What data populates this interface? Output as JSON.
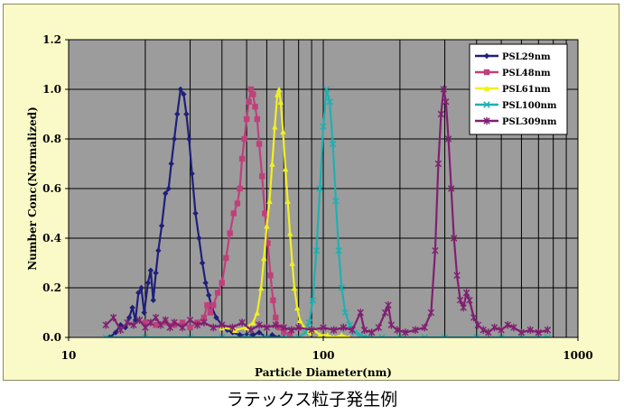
{
  "caption": "ラテックス粒子発生例",
  "chart_data": {
    "type": "line",
    "title": "",
    "xlabel": "Particle Diameter(nm)",
    "ylabel": "Number Conc(Normalized)",
    "xscale": "log",
    "xlim": [
      10,
      1000
    ],
    "ylim": [
      0,
      1.2
    ],
    "xticks": [
      {
        "value": 10,
        "label": "10"
      },
      {
        "value": 100,
        "label": "100"
      },
      {
        "value": 1000,
        "label": "1000"
      }
    ],
    "yticks": [
      {
        "value": 0,
        "label": "0.0"
      },
      {
        "value": 0.2,
        "label": "0.2"
      },
      {
        "value": 0.4,
        "label": "0.4"
      },
      {
        "value": 0.6,
        "label": "0.6"
      },
      {
        "value": 0.8,
        "label": "0.8"
      },
      {
        "value": 1.0,
        "label": "1.0"
      },
      {
        "value": 1.2,
        "label": "1.2"
      }
    ],
    "grid": true,
    "legend_position": "top-right",
    "plot_background": "#9c9c9c",
    "series": [
      {
        "name": "PSL29nm",
        "color": "#1f1f7a",
        "marker": "diamond",
        "points": [
          [
            14.5,
            0
          ],
          [
            15.3,
            0.02
          ],
          [
            16,
            0.05
          ],
          [
            16.7,
            0.04
          ],
          [
            17.3,
            0.08
          ],
          [
            17.8,
            0.12
          ],
          [
            18.3,
            0.07
          ],
          [
            18.8,
            0.18
          ],
          [
            19.3,
            0.2
          ],
          [
            19.8,
            0.1
          ],
          [
            20.5,
            0.22
          ],
          [
            21,
            0.27
          ],
          [
            21.5,
            0.15
          ],
          [
            22,
            0.26
          ],
          [
            22.5,
            0.35
          ],
          [
            23.2,
            0.45
          ],
          [
            24,
            0.58
          ],
          [
            24.7,
            0.6
          ],
          [
            25.3,
            0.7
          ],
          [
            26,
            0.8
          ],
          [
            26.7,
            0.9
          ],
          [
            27.5,
            1.0
          ],
          [
            28.3,
            0.98
          ],
          [
            29,
            0.9
          ],
          [
            29.7,
            0.8
          ],
          [
            30.5,
            0.66
          ],
          [
            31.5,
            0.5
          ],
          [
            32.5,
            0.4
          ],
          [
            33.5,
            0.3
          ],
          [
            34.5,
            0.22
          ],
          [
            35.5,
            0.17
          ],
          [
            36.5,
            0.12
          ],
          [
            38,
            0.08
          ],
          [
            40,
            0.05
          ],
          [
            42,
            0.03
          ],
          [
            44,
            0.02
          ],
          [
            47,
            0.01
          ],
          [
            50,
            0.01
          ],
          [
            53,
            0.01
          ],
          [
            56,
            0.02
          ],
          [
            60,
            0.0
          ],
          [
            63,
            0.01
          ],
          [
            67,
            0.0
          ]
        ]
      },
      {
        "name": "PSL48nm",
        "color": "#c0407a",
        "marker": "square",
        "points": [
          [
            20,
            0.06
          ],
          [
            22,
            0.05
          ],
          [
            24,
            0.06
          ],
          [
            26,
            0.05
          ],
          [
            28,
            0.06
          ],
          [
            30,
            0.04
          ],
          [
            32,
            0.06
          ],
          [
            34,
            0.08
          ],
          [
            35,
            0.13
          ],
          [
            36,
            0.1
          ],
          [
            37,
            0.13
          ],
          [
            38.5,
            0.18
          ],
          [
            40,
            0.22
          ],
          [
            41.5,
            0.32
          ],
          [
            43,
            0.42
          ],
          [
            44.5,
            0.5
          ],
          [
            46,
            0.54
          ],
          [
            47,
            0.6
          ],
          [
            48,
            0.72
          ],
          [
            49,
            0.8
          ],
          [
            50,
            0.88
          ],
          [
            51,
            0.95
          ],
          [
            52,
            1.0
          ],
          [
            53,
            0.98
          ],
          [
            54,
            0.93
          ],
          [
            55,
            0.88
          ],
          [
            56,
            0.78
          ],
          [
            57.5,
            0.65
          ],
          [
            59,
            0.5
          ],
          [
            60.5,
            0.38
          ],
          [
            62,
            0.25
          ],
          [
            63.5,
            0.15
          ],
          [
            65,
            0.08
          ],
          [
            67,
            0.04
          ],
          [
            70,
            0.02
          ],
          [
            74,
            0.01
          ]
        ]
      },
      {
        "name": "PSL61nm",
        "color": "#f0f020",
        "marker": "triangle",
        "points": [
          [
            40,
            0.04
          ],
          [
            45,
            0.03
          ],
          [
            50,
            0.04
          ],
          [
            53,
            0.06
          ],
          [
            55,
            0.1
          ],
          [
            57,
            0.2
          ],
          [
            58.5,
            0.32
          ],
          [
            60,
            0.45
          ],
          [
            61.5,
            0.55
          ],
          [
            63,
            0.7
          ],
          [
            64.5,
            0.85
          ],
          [
            66,
            0.98
          ],
          [
            67,
            1.0
          ],
          [
            68,
            0.95
          ],
          [
            69.5,
            0.83
          ],
          [
            71,
            0.68
          ],
          [
            72.5,
            0.55
          ],
          [
            74,
            0.42
          ],
          [
            75.5,
            0.3
          ],
          [
            77,
            0.2
          ],
          [
            79,
            0.12
          ],
          [
            81,
            0.07
          ],
          [
            84,
            0.04
          ],
          [
            88,
            0.02
          ],
          [
            92,
            0.03
          ],
          [
            97,
            0.01
          ],
          [
            104,
            0.01
          ],
          [
            110,
            0.0
          ],
          [
            118,
            0.01
          ],
          [
            126,
            0.0
          ]
        ]
      },
      {
        "name": "PSL100nm",
        "color": "#20b0b0",
        "marker": "cross",
        "points": [
          [
            14,
            0
          ],
          [
            20,
            0
          ],
          [
            30,
            0
          ],
          [
            40,
            0
          ],
          [
            50,
            0
          ],
          [
            60,
            0
          ],
          [
            70,
            0
          ],
          [
            80,
            0
          ],
          [
            85,
            0.02
          ],
          [
            88,
            0.06
          ],
          [
            91,
            0.15
          ],
          [
            94,
            0.35
          ],
          [
            97,
            0.6
          ],
          [
            100,
            0.85
          ],
          [
            103,
            1.0
          ],
          [
            106,
            0.95
          ],
          [
            109,
            0.78
          ],
          [
            112,
            0.55
          ],
          [
            115,
            0.35
          ],
          [
            118,
            0.2
          ],
          [
            122,
            0.1
          ],
          [
            127,
            0.05
          ],
          [
            133,
            0.02
          ],
          [
            140,
            0.01
          ],
          [
            150,
            0.0
          ],
          [
            170,
            0.0
          ],
          [
            200,
            0.0
          ],
          [
            250,
            0.0
          ],
          [
            300,
            0.0
          ],
          [
            400,
            0.0
          ],
          [
            500,
            0.0
          ],
          [
            600,
            0.0
          ],
          [
            700,
            0.0
          ],
          [
            760,
            0.0
          ]
        ]
      },
      {
        "name": "PSL309nm",
        "color": "#802070",
        "marker": "star",
        "points": [
          [
            14,
            0.05
          ],
          [
            15,
            0.08
          ],
          [
            16,
            0.03
          ],
          [
            17,
            0.06
          ],
          [
            18,
            0.05
          ],
          [
            19,
            0.07
          ],
          [
            20,
            0.04
          ],
          [
            21,
            0.06
          ],
          [
            22,
            0.08
          ],
          [
            23,
            0.05
          ],
          [
            24,
            0.07
          ],
          [
            25,
            0.04
          ],
          [
            26,
            0.06
          ],
          [
            28,
            0.04
          ],
          [
            30,
            0.07
          ],
          [
            32,
            0.05
          ],
          [
            34,
            0.06
          ],
          [
            37,
            0.04
          ],
          [
            40,
            0.05
          ],
          [
            44,
            0.04
          ],
          [
            48,
            0.06
          ],
          [
            52,
            0.03
          ],
          [
            56,
            0.05
          ],
          [
            60,
            0.04
          ],
          [
            65,
            0.05
          ],
          [
            70,
            0.04
          ],
          [
            75,
            0.03
          ],
          [
            80,
            0.04
          ],
          [
            90,
            0.03
          ],
          [
            100,
            0.04
          ],
          [
            110,
            0.03
          ],
          [
            120,
            0.04
          ],
          [
            130,
            0.03
          ],
          [
            140,
            0.1
          ],
          [
            145,
            0.03
          ],
          [
            155,
            0.02
          ],
          [
            165,
            0.04
          ],
          [
            175,
            0.1
          ],
          [
            180,
            0.13
          ],
          [
            185,
            0.05
          ],
          [
            195,
            0.03
          ],
          [
            210,
            0.02
          ],
          [
            230,
            0.03
          ],
          [
            250,
            0.04
          ],
          [
            265,
            0.1
          ],
          [
            275,
            0.35
          ],
          [
            283,
            0.7
          ],
          [
            290,
            0.9
          ],
          [
            297,
            1.0
          ],
          [
            303,
            0.95
          ],
          [
            310,
            0.8
          ],
          [
            318,
            0.6
          ],
          [
            326,
            0.4
          ],
          [
            335,
            0.25
          ],
          [
            345,
            0.15
          ],
          [
            355,
            0.12
          ],
          [
            365,
            0.18
          ],
          [
            375,
            0.15
          ],
          [
            390,
            0.08
          ],
          [
            405,
            0.05
          ],
          [
            425,
            0.03
          ],
          [
            445,
            0.02
          ],
          [
            470,
            0.04
          ],
          [
            500,
            0.03
          ],
          [
            530,
            0.05
          ],
          [
            560,
            0.04
          ],
          [
            600,
            0.02
          ],
          [
            650,
            0.03
          ],
          [
            700,
            0.02
          ],
          [
            760,
            0.03
          ]
        ]
      }
    ]
  }
}
